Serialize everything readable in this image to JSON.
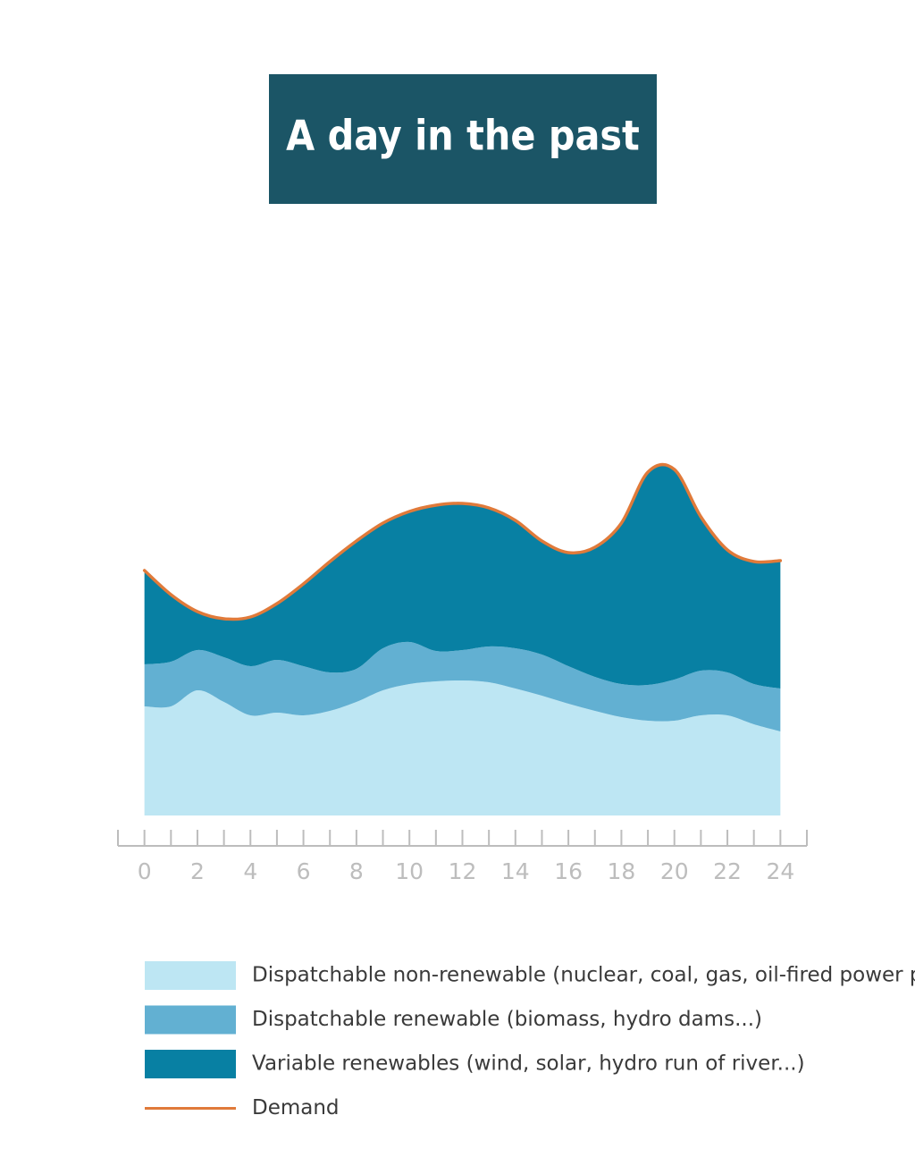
{
  "chart_data": {
    "type": "stacked-area",
    "title": "A day in the past",
    "x": [
      0,
      1,
      2,
      3,
      4,
      5,
      6,
      7,
      8,
      9,
      10,
      11,
      12,
      13,
      14,
      15,
      16,
      17,
      18,
      19,
      20,
      21,
      22,
      23,
      24
    ],
    "xlim": [
      -1,
      25
    ],
    "xticks": [
      0,
      2,
      4,
      6,
      8,
      10,
      12,
      14,
      16,
      18,
      20,
      22,
      24
    ],
    "xminorticks": [
      -1,
      1,
      3,
      5,
      7,
      9,
      11,
      13,
      15,
      17,
      19,
      21,
      23,
      25
    ],
    "ylim": [
      0,
      100
    ],
    "series": [
      {
        "name": "Dispatchable non-renewable (nuclear, coal, gas, oil-fired power plants)",
        "color": "#bde6f3",
        "kind": "area",
        "values": [
          30.5,
          30.5,
          35,
          31.75,
          28,
          28.75,
          28,
          29.25,
          31.75,
          35,
          36.75,
          37.5,
          37.75,
          37.25,
          35.5,
          33.5,
          31.25,
          29.25,
          27.5,
          26.5,
          26.5,
          28,
          28,
          25.5,
          23.5
        ]
      },
      {
        "name": "Dispatchable renewable (biomass, hydro dams...)",
        "color": "#62b0d2",
        "kind": "area",
        "values": [
          11.75,
          12.5,
          11.25,
          12.5,
          13.75,
          14.75,
          13.75,
          10.75,
          9.25,
          11.75,
          11.75,
          8.5,
          8.5,
          10,
          11.25,
          11.5,
          10.5,
          9.5,
          9.25,
          10,
          11.5,
          12.5,
          12,
          11.25,
          12
        ]
      },
      {
        "name": "Variable renewables (wind, solar, hydro run of river...)",
        "color": "#0880a3",
        "kind": "area",
        "values": [
          26.25,
          18.75,
          10.75,
          10.75,
          13.75,
          15.75,
          23,
          31,
          35.75,
          35,
          36.5,
          40.75,
          41,
          38.75,
          35.75,
          31.75,
          31.75,
          36.25,
          45,
          59.5,
          58.75,
          43,
          34.25,
          34.25,
          35.75
        ]
      },
      {
        "name": "Demand",
        "color": "#e07a3a",
        "kind": "line",
        "values": [
          68.5,
          61.75,
          57,
          55,
          55.5,
          59.25,
          64.75,
          71,
          76.75,
          81.75,
          85,
          86.75,
          87.25,
          86,
          82.5,
          76.75,
          73.5,
          75,
          81.75,
          96,
          96.75,
          83.5,
          74.25,
          71,
          71.25
        ]
      }
    ]
  }
}
